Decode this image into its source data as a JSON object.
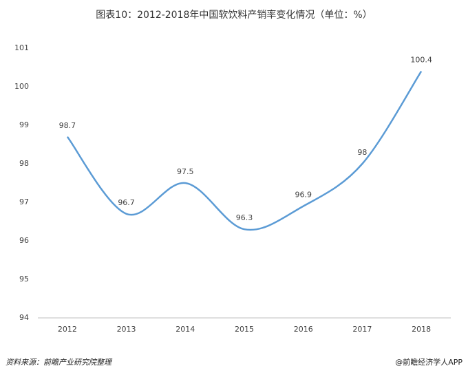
{
  "chart_data": {
    "type": "line",
    "title": "图表10：2012-2018年中国软饮料产销率变化情况（单位：%）",
    "categories": [
      "2012",
      "2013",
      "2014",
      "2015",
      "2016",
      "2017",
      "2018"
    ],
    "series": [
      {
        "name": "产销率",
        "color": "#5b9bd5",
        "values": [
          98.7,
          96.7,
          97.5,
          96.3,
          96.9,
          98,
          100.4
        ]
      }
    ],
    "ylim": [
      94,
      101
    ],
    "yticks": [
      94,
      95,
      96,
      97,
      98,
      99,
      100,
      101
    ],
    "grid": false,
    "smooth": true,
    "source": "资料来源：前瞻产业研究院整理",
    "credit": "@前瞻经济学人APP"
  }
}
